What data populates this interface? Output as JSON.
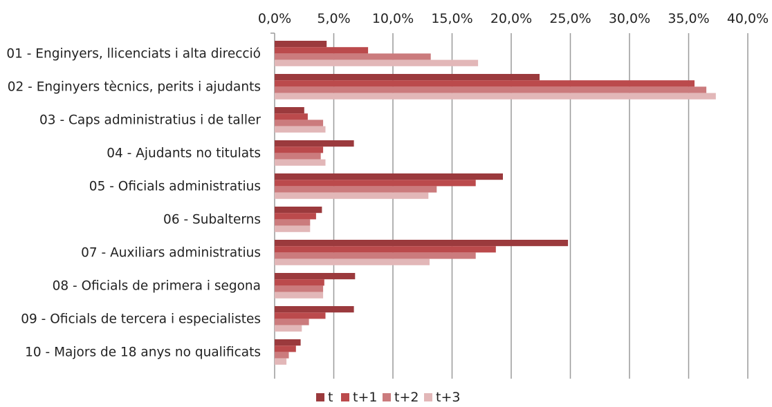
{
  "chart_data": {
    "type": "bar",
    "orientation": "horizontal",
    "title": "",
    "xlabel": "",
    "ylabel": "",
    "xlim": [
      0,
      40
    ],
    "x_ticks": [
      "0,0%",
      "5,0%",
      "10,0%",
      "15,0%",
      "20,0%",
      "25,0%",
      "30,0%",
      "35,0%",
      "40,0%"
    ],
    "x_axis_position": "top",
    "grid": "vertical",
    "legend_position": "bottom",
    "categories": [
      "01 - Enginyers, llicenciats i alta direcció",
      "02 - Enginyers tècnics, perits i ajudants",
      "03 - Caps administratius i de taller",
      "04 - Ajudants no titulats",
      "05 - Oficials administratius",
      "06 - Subalterns",
      "07 - Auxiliars administratius",
      "08 - Oficials de primera i segona",
      "09 - Oficials de tercera i especialistes",
      "10 - Majors de 18 anys no qualificats"
    ],
    "series": [
      {
        "name": "t",
        "color": "#9b3a3d",
        "values": [
          4.4,
          22.4,
          2.5,
          6.7,
          19.3,
          4.0,
          24.8,
          6.8,
          6.7,
          2.2
        ]
      },
      {
        "name": "t+1",
        "color": "#bb4a4c",
        "values": [
          7.9,
          35.5,
          2.8,
          4.1,
          17.0,
          3.5,
          18.7,
          4.2,
          4.3,
          1.8
        ]
      },
      {
        "name": "t+2",
        "color": "#cb7b7d",
        "values": [
          13.2,
          36.5,
          4.1,
          3.9,
          13.7,
          3.0,
          17.0,
          4.1,
          2.9,
          1.2
        ]
      },
      {
        "name": "t+3",
        "color": "#e2b7b8",
        "values": [
          17.2,
          37.3,
          4.3,
          4.3,
          13.0,
          3.0,
          13.1,
          4.1,
          2.3,
          1.0
        ]
      }
    ]
  }
}
